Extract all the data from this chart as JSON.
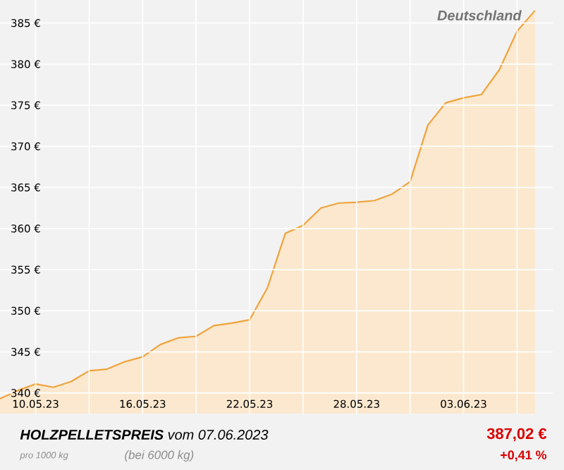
{
  "chart_data": {
    "type": "area",
    "title": "**HOLZPELLETSPREIS** vom 07.06.2023",
    "x": [
      "2023-05-08",
      "2023-05-09",
      "2023-05-10",
      "2023-05-11",
      "2023-05-12",
      "2023-05-13",
      "2023-05-14",
      "2023-05-15",
      "2023-05-16",
      "2023-05-17",
      "2023-05-18",
      "2023-05-19",
      "2023-05-20",
      "2023-05-21",
      "2023-05-22",
      "2023-05-23",
      "2023-05-24",
      "2023-05-25",
      "2023-05-26",
      "2023-05-27",
      "2023-05-28",
      "2023-05-29",
      "2023-05-30",
      "2023-05-31",
      "2023-06-01",
      "2023-06-02",
      "2023-06-03",
      "2023-06-04",
      "2023-06-05",
      "2023-06-06",
      "2023-06-07"
    ],
    "series": [
      {
        "color": "#f0a33c",
        "values": [
          339.3,
          340.3,
          341.1,
          340.7,
          341.4,
          342.7,
          342.9,
          343.8,
          344.4,
          345.9,
          346.7,
          346.9,
          348.2,
          348.5,
          348.9,
          352.8,
          359.4,
          360.4,
          362.5,
          363.1,
          363.2,
          363.4,
          364.2,
          365.7,
          372.6,
          375.3,
          375.9,
          376.3,
          379.3,
          384.0,
          386.5
        ]
      }
    ],
    "xlim": [
      "2023-05-08",
      "2023-06-08"
    ],
    "xticks": [
      {
        "value": "2023-05-10",
        "label": "10.05.23"
      },
      {
        "value": "2023-05-13",
        "label": null
      },
      {
        "value": "2023-05-16",
        "label": "16.05.23"
      },
      {
        "value": "2023-05-19",
        "label": null
      },
      {
        "value": "2023-05-22",
        "label": "22.05.23"
      },
      {
        "value": "2023-05-25",
        "label": null
      },
      {
        "value": "2023-05-28",
        "label": "28.05.23"
      },
      {
        "value": "2023-05-31",
        "label": null
      },
      {
        "value": "2023-06-03",
        "label": "03.06.23"
      },
      {
        "value": "2023-06-06",
        "label": null
      }
    ],
    "ylim": [
      337.5,
      387.8
    ],
    "yticks": [
      {
        "value": 340,
        "label": "340 €"
      },
      {
        "value": 345,
        "label": "345 €"
      },
      {
        "value": 350,
        "label": "350 €"
      },
      {
        "value": 355,
        "label": "355 €"
      },
      {
        "value": 360,
        "label": "360 €"
      },
      {
        "value": 365,
        "label": "365 €"
      },
      {
        "value": 370,
        "label": "370 €"
      },
      {
        "value": 375,
        "label": "375 €"
      },
      {
        "value": 380,
        "label": "380 €"
      },
      {
        "value": 385,
        "label": "385 €"
      }
    ],
    "grid": true,
    "marker": "none",
    "line_style": "solid",
    "annotations": [
      "Deutschland",
      "pro 1000 kg",
      "(bei 6000 kg)",
      "387,02 €",
      "+0,41 %"
    ]
  }
}
